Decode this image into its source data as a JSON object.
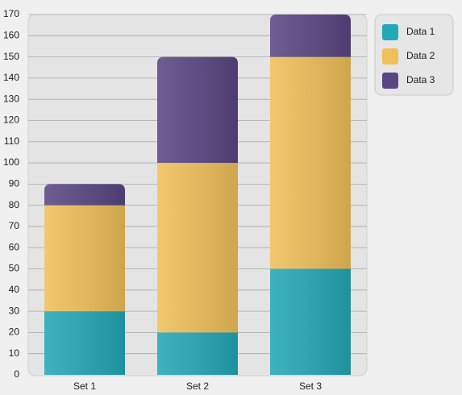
{
  "chart_data": {
    "type": "stacked-bar",
    "categories": [
      "Set 1",
      "Set 2",
      "Set 3"
    ],
    "series": [
      {
        "name": "Data 1",
        "color": "#23a8b7",
        "values": [
          30,
          20,
          50
        ]
      },
      {
        "name": "Data 2",
        "color": "#f0c05a",
        "values": [
          50,
          80,
          100
        ]
      },
      {
        "name": "Data 3",
        "color": "#5a4683",
        "values": [
          10,
          50,
          20
        ]
      }
    ],
    "ylim": [
      0,
      170
    ],
    "yticks": [
      0,
      10,
      20,
      30,
      40,
      50,
      60,
      70,
      80,
      90,
      100,
      110,
      120,
      130,
      140,
      150,
      160,
      170
    ],
    "grid": true,
    "legend": "top-right"
  }
}
